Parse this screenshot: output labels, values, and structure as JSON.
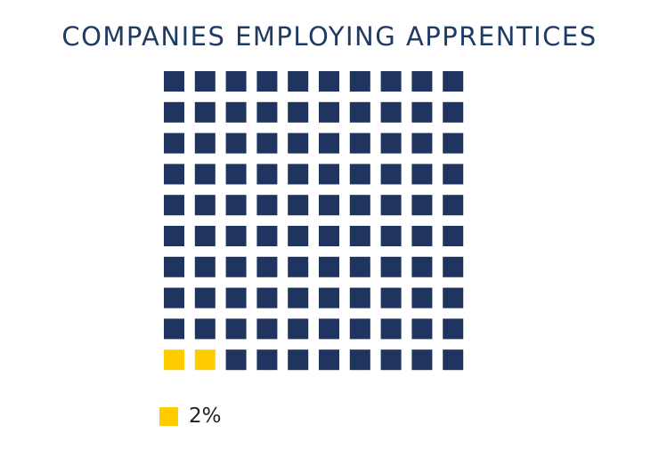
{
  "chart_data": {
    "type": "waffle",
    "title": "COMPANIES EMPLOYING APPRENTICES",
    "rows": 10,
    "cols": 10,
    "total": 100,
    "highlight_count": 2,
    "highlight_color": "#ffcc00",
    "base_color": "#1f3560",
    "legend": [
      {
        "label": "2%",
        "color": "#ffcc00"
      }
    ]
  }
}
